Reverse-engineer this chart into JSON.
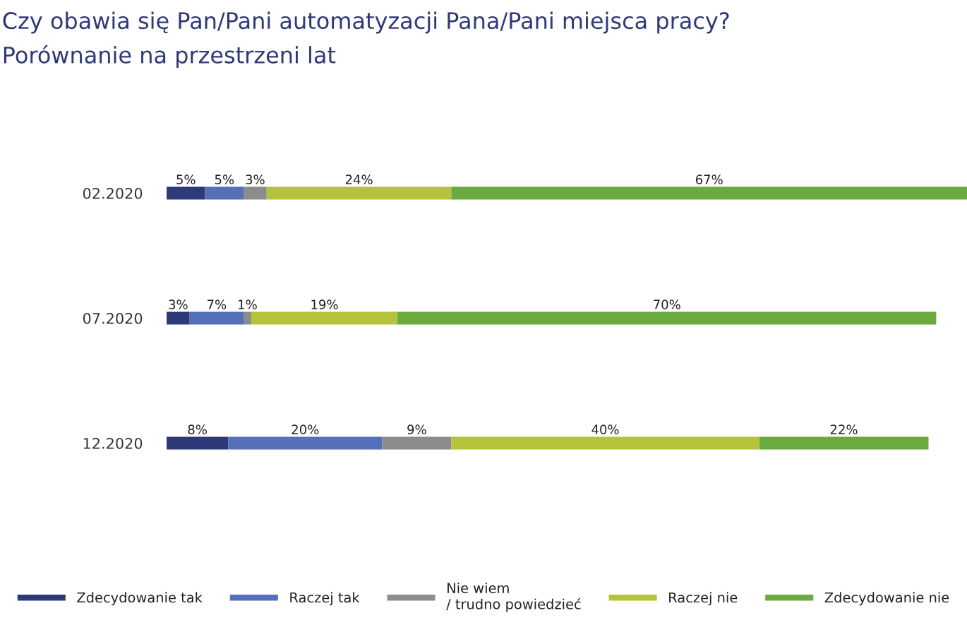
{
  "chart_data": {
    "type": "bar",
    "orientation": "horizontal",
    "stacked": true,
    "title": "Czy obawia się Pan/Pani automatyzacji Pana/Pani miejsca pracy?",
    "subtitle": "Porównanie na przestrzeni lat",
    "categories": [
      "02.2020",
      "07.2020",
      "12.2020"
    ],
    "series": [
      {
        "name": "Zdecydowanie tak",
        "color": "#2e3a78",
        "values": [
          5,
          3,
          8
        ],
        "value_labels": [
          "5%",
          "3%",
          "8%"
        ]
      },
      {
        "name": "Raczej tak",
        "color": "#5470b8",
        "values": [
          5,
          7,
          20
        ],
        "value_labels": [
          "5%",
          "7%",
          "20%"
        ]
      },
      {
        "name": "Nie wiem\n/ trudno powiedzieć",
        "color": "#8c8c8c",
        "values": [
          3,
          1,
          9
        ],
        "value_labels": [
          "3%",
          "1%",
          "9%"
        ]
      },
      {
        "name": "Raczej nie",
        "color": "#b5c23c",
        "values": [
          24,
          19,
          40
        ],
        "value_labels": [
          "24%",
          "19%",
          "40%"
        ]
      },
      {
        "name": "Zdecydowanie nie",
        "color": "#6aaa3e",
        "values": [
          67,
          70,
          22
        ],
        "value_labels": [
          "67%",
          "70%",
          "22%"
        ]
      }
    ],
    "legend": "bottom",
    "grid": false
  }
}
